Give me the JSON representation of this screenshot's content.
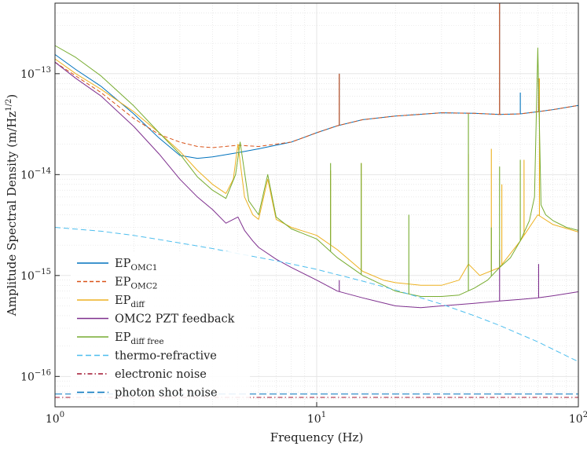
{
  "chart_data": {
    "type": "line",
    "xlabel": "Frequency (Hz)",
    "ylabel": "Amplitude Spectral Density (m/Hz",
    "ylabel_sup": "1/2",
    "ylabel_tail": ")",
    "x_scale": "log",
    "y_scale": "log",
    "xlim": [
      1,
      100
    ],
    "ylim": [
      5e-17,
      5e-13
    ],
    "grid": true,
    "legend_placement": "bottom-left",
    "x_ticks": [
      {
        "value": 1,
        "base": "10",
        "exp": "0"
      },
      {
        "value": 10,
        "base": "10",
        "exp": "1"
      },
      {
        "value": 100,
        "base": "10",
        "exp": "2"
      }
    ],
    "y_ticks": [
      {
        "value": 1e-16,
        "base": "10",
        "exp": "−16"
      },
      {
        "value": 1e-15,
        "base": "10",
        "exp": "−15"
      },
      {
        "value": 1e-14,
        "base": "10",
        "exp": "−14"
      },
      {
        "value": 1e-13,
        "base": "10",
        "exp": "−13"
      }
    ],
    "series": [
      {
        "name": "EP",
        "sub": "OMC1",
        "color": "#0072BD",
        "dash": "",
        "width": 1.0,
        "x": [
          1,
          1.2,
          1.5,
          2,
          2.5,
          3,
          3.5,
          4,
          5,
          6,
          8,
          10,
          12,
          15,
          20,
          30,
          40,
          50,
          60,
          70,
          80,
          100
        ],
        "y": [
          1.55e-13,
          1.1e-13,
          7.5e-14,
          4e-14,
          2.3e-14,
          1.55e-14,
          1.45e-14,
          1.5e-14,
          1.65e-14,
          1.8e-14,
          2.1e-14,
          2.6e-14,
          3.05e-14,
          3.5e-14,
          3.8e-14,
          4.1e-14,
          4.05e-14,
          3.95e-14,
          4e-14,
          4.2e-14,
          4.4e-14,
          4.85e-14
        ],
        "spikes": [
          {
            "x": 12.2,
            "y": 1e-13
          },
          {
            "x": 50,
            "y": 5e-13
          },
          {
            "x": 60,
            "y": 6.5e-14
          },
          {
            "x": 70.5,
            "y": 9e-14
          }
        ]
      },
      {
        "name": "EP",
        "sub": "OMC2",
        "color": "#D95319",
        "dash": "5,3",
        "width": 1.0,
        "x": [
          1,
          1.2,
          1.5,
          2,
          2.5,
          3,
          3.5,
          4,
          5,
          6,
          8,
          10,
          12,
          15,
          20,
          30,
          40,
          50,
          60,
          70,
          80,
          100
        ],
        "y": [
          1.3e-13,
          9.5e-14,
          6.5e-14,
          3.6e-14,
          2.5e-14,
          2.1e-14,
          1.9e-14,
          1.85e-14,
          1.95e-14,
          1.9e-14,
          2.1e-14,
          2.6e-14,
          3.05e-14,
          3.5e-14,
          3.8e-14,
          4.1e-14,
          4.05e-14,
          3.95e-14,
          4e-14,
          4.2e-14,
          4.4e-14,
          4.85e-14
        ],
        "spikes": [
          {
            "x": 12.2,
            "y": 1e-13
          },
          {
            "x": 50,
            "y": 5e-13
          },
          {
            "x": 70.5,
            "y": 9e-14
          }
        ]
      },
      {
        "name": "EP",
        "sub": "diff",
        "color": "#EDB120",
        "dash": "",
        "width": 1.0,
        "x": [
          1,
          1.2,
          1.5,
          2,
          2.5,
          3,
          3.5,
          4,
          4.5,
          4.8,
          5.0,
          5.3,
          5.7,
          6,
          6.5,
          7,
          8,
          10,
          12,
          15,
          18,
          20,
          25,
          30,
          35,
          38,
          42,
          50,
          60,
          70,
          80,
          100
        ],
        "y": [
          1.4e-13,
          1e-13,
          7e-14,
          4.2e-14,
          2.6e-14,
          1.7e-14,
          1.1e-14,
          8e-15,
          6.5e-15,
          9e-15,
          2e-14,
          6e-15,
          4e-15,
          3.6e-15,
          9e-15,
          3.6e-15,
          3e-15,
          2.5e-15,
          1.8e-15,
          1.1e-15,
          9e-16,
          8.5e-16,
          8e-16,
          8e-16,
          9e-16,
          1.3e-15,
          1e-15,
          1.2e-15,
          2.2e-15,
          4e-15,
          3.2e-15,
          2.7e-15
        ],
        "spikes": [
          {
            "x": 14.8,
            "y": 1.3e-14
          },
          {
            "x": 11.3,
            "y": 1.1e-14
          },
          {
            "x": 38,
            "y": 1.6e-14
          },
          {
            "x": 46.5,
            "y": 1.8e-14
          },
          {
            "x": 51,
            "y": 8e-15
          },
          {
            "x": 62,
            "y": 1.4e-14
          },
          {
            "x": 71,
            "y": 9e-14
          }
        ]
      },
      {
        "name": "OMC2 PZT feedback",
        "sub": "",
        "color": "#7E2F8E",
        "dash": "",
        "width": 1.0,
        "x": [
          1,
          1.2,
          1.5,
          2,
          2.5,
          3,
          3.5,
          4,
          4.5,
          5.0,
          5.3,
          5.7,
          6,
          7,
          8,
          10,
          12,
          15,
          20,
          25,
          30,
          40,
          50,
          60,
          70,
          80,
          100
        ],
        "y": [
          1.3e-13,
          9e-14,
          6e-14,
          3e-14,
          1.6e-14,
          9e-15,
          6e-15,
          4.5e-15,
          3.3e-15,
          3.8e-15,
          2.8e-15,
          2.2e-15,
          1.9e-15,
          1.45e-15,
          1.2e-15,
          9e-16,
          7e-16,
          6e-16,
          5e-16,
          4.8e-16,
          5e-16,
          5.3e-16,
          5.6e-16,
          5.8e-16,
          6e-16,
          6.3e-16,
          6.9e-16
        ],
        "spikes": [
          {
            "x": 12.2,
            "y": 9e-16
          },
          {
            "x": 50,
            "y": 1.8e-15
          },
          {
            "x": 70.5,
            "y": 1.3e-15
          }
        ]
      },
      {
        "name": "EP",
        "sub": "diff free",
        "color": "#77AC30",
        "dash": "",
        "width": 1.0,
        "x": [
          1,
          1.2,
          1.5,
          2,
          2.5,
          3,
          3.5,
          4,
          4.5,
          4.9,
          5.1,
          5.5,
          6,
          6.5,
          7,
          8,
          10,
          12,
          15,
          18,
          20,
          25,
          30,
          35,
          40,
          45,
          50,
          55,
          60,
          65,
          68,
          70,
          72,
          75,
          80,
          90,
          100
        ],
        "y": [
          1.9e-13,
          1.45e-13,
          9.5e-14,
          4.8e-14,
          2.6e-14,
          1.6e-14,
          9.5e-15,
          7e-15,
          5.8e-15,
          1e-14,
          2.1e-14,
          5.5e-15,
          4e-15,
          1e-14,
          3.8e-15,
          2.9e-15,
          2.3e-15,
          1.5e-15,
          1e-15,
          8e-16,
          7e-16,
          6.2e-16,
          6.2e-16,
          6.4e-16,
          7.5e-16,
          9e-16,
          1.2e-15,
          1.5e-15,
          2.2e-15,
          3.5e-15,
          6e-15,
          1.8e-13,
          5e-15,
          4e-15,
          3.5e-15,
          3e-15,
          2.8e-15
        ],
        "spikes": [
          {
            "x": 11.3,
            "y": 1.3e-14
          },
          {
            "x": 14.8,
            "y": 1.3e-14
          },
          {
            "x": 22.5,
            "y": 4e-15
          },
          {
            "x": 38,
            "y": 4e-14
          },
          {
            "x": 46.5,
            "y": 3e-15
          },
          {
            "x": 50,
            "y": 1.2e-14
          },
          {
            "x": 60,
            "y": 1.4e-14
          }
        ]
      },
      {
        "name": "thermo-refractive",
        "sub": "",
        "color": "#4DBEEE",
        "dash": "7,4",
        "width": 1.0,
        "x": [
          1,
          1.5,
          2,
          3,
          4,
          5,
          7,
          10,
          15,
          20,
          30,
          40,
          50,
          70,
          100
        ],
        "y": [
          3e-15,
          2.75e-15,
          2.5e-15,
          2.1e-15,
          1.85e-15,
          1.65e-15,
          1.4e-15,
          1.15e-15,
          8.8e-16,
          7.2e-16,
          5.2e-16,
          4e-16,
          3.2e-16,
          2.2e-16,
          1.4e-16
        ],
        "spikes": []
      },
      {
        "name": "electronic noise",
        "sub": "",
        "color": "#A2142F",
        "dash": "6,3,1.5,3",
        "width": 1.0,
        "x": [
          1,
          100
        ],
        "y": [
          6.2e-17,
          6.2e-17
        ],
        "spikes": []
      },
      {
        "name": "photon shot noise",
        "sub": "",
        "color": "#0072BD",
        "dash": "9,4",
        "width": 1.0,
        "x": [
          1,
          100
        ],
        "y": [
          6.7e-17,
          6.7e-17
        ],
        "spikes": []
      }
    ]
  }
}
